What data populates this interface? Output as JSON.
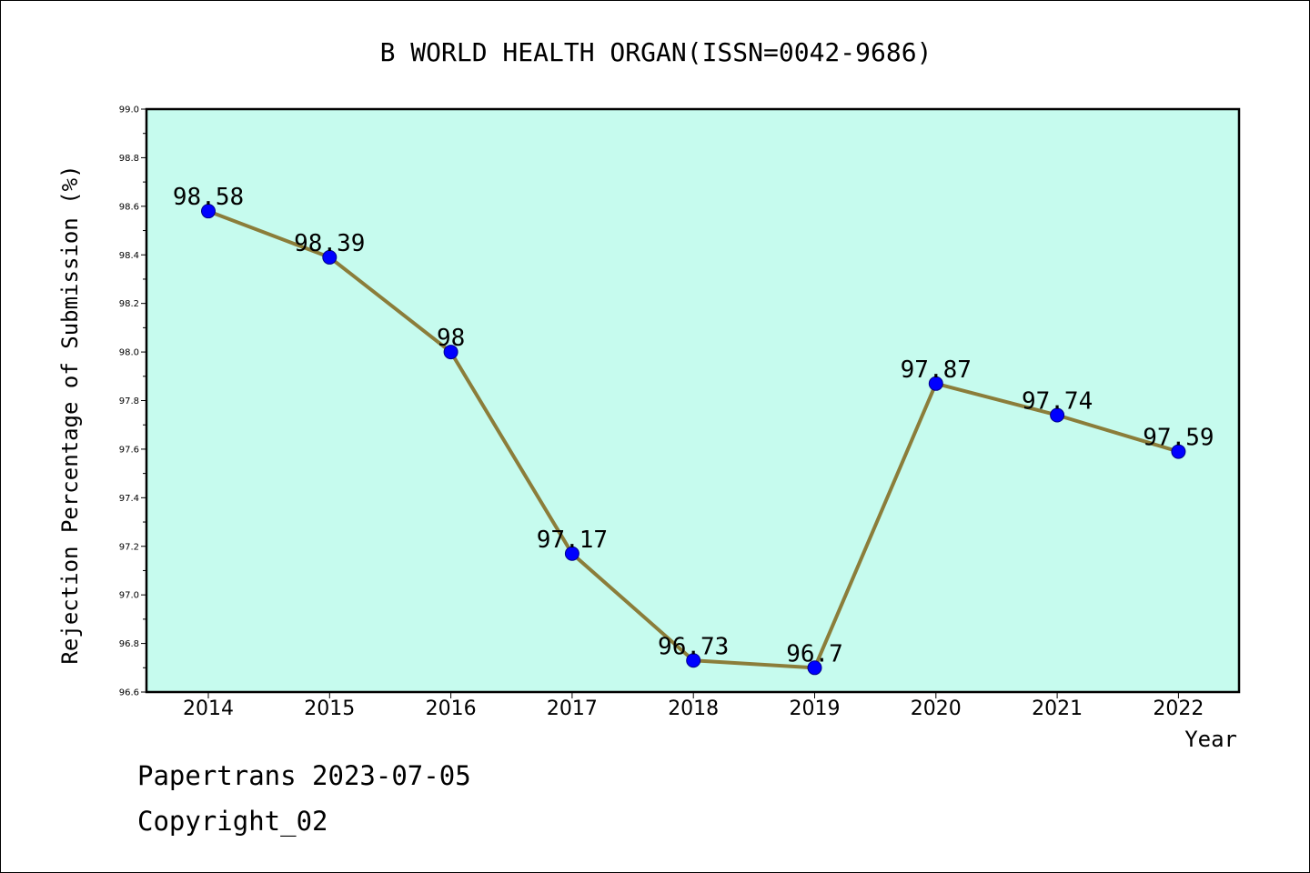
{
  "chart_data": {
    "type": "line",
    "title": "B WORLD HEALTH ORGAN(ISSN=0042-9686)",
    "xlabel": "Year",
    "ylabel": "Rejection Percentage of Submission (%)",
    "categories": [
      "2014",
      "2015",
      "2016",
      "2017",
      "2018",
      "2019",
      "2020",
      "2021",
      "2022"
    ],
    "series": [
      {
        "values": [
          98.58,
          98.39,
          98,
          97.17,
          96.73,
          96.7,
          97.87,
          97.74,
          97.59
        ]
      }
    ],
    "data_labels": [
      "98.58",
      "98.39",
      "98",
      "97.17",
      "96.73",
      "96.7",
      "97.87",
      "97.74",
      "97.59"
    ],
    "ylim": [
      96.6,
      99.0
    ],
    "yticks": [
      96.6,
      96.8,
      97.0,
      97.2,
      97.4,
      97.6,
      97.8,
      98.0,
      98.2,
      98.4,
      98.6,
      98.8,
      99.0
    ],
    "ytick_labels": [
      "96.6",
      "96.8",
      "97.0",
      "97.2",
      "97.4",
      "97.6",
      "97.8",
      "98.0",
      "98.2",
      "98.4",
      "98.6",
      "98.8",
      "99.0"
    ],
    "grid": false,
    "legend": "none",
    "colors": {
      "plot_background": "#c6fbee",
      "line": "#8b7d3a",
      "marker_fill": "#0000ff",
      "marker_edge": "#00008b"
    }
  },
  "footer": {
    "line1": "Papertrans 2023-07-05",
    "line2": "Copyright_02"
  }
}
